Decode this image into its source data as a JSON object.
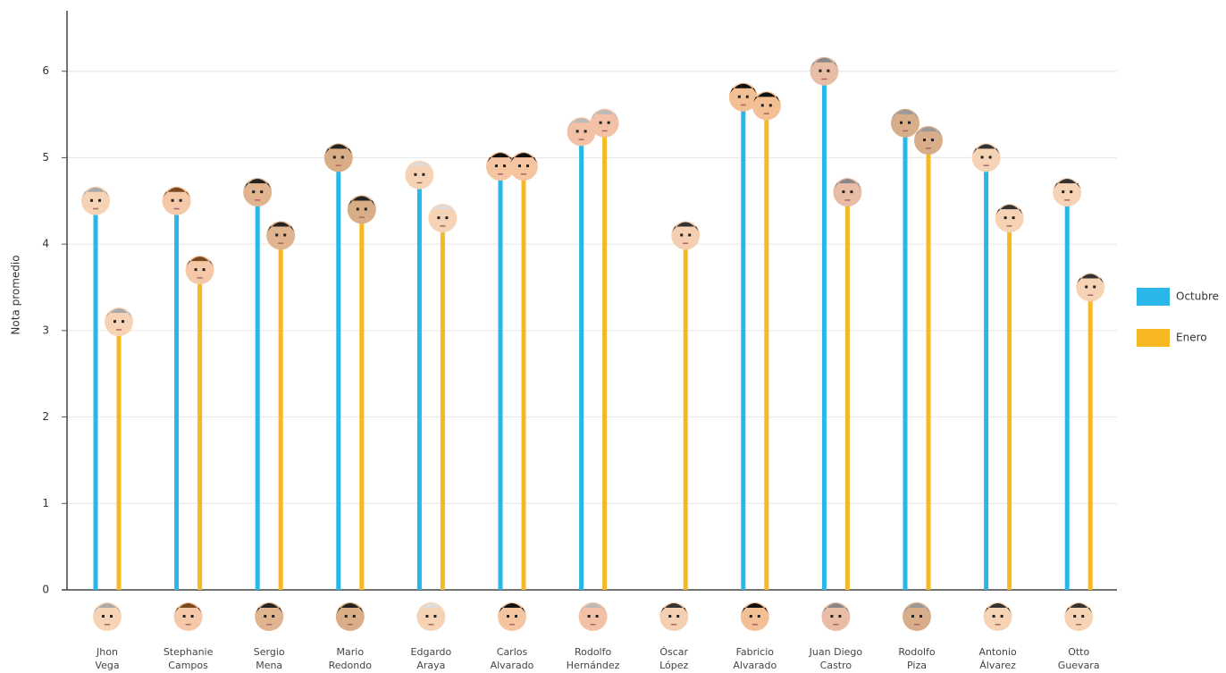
{
  "chart_data": {
    "type": "lollipop",
    "y_label": "Nota promedio",
    "categories": [
      [
        "Jhon",
        "Vega"
      ],
      [
        "Stephanie",
        "Campos"
      ],
      [
        "Sergio",
        "Mena"
      ],
      [
        "Mario",
        "Redondo"
      ],
      [
        "Edgardo",
        "Araya"
      ],
      [
        "Carlos",
        "Alvarado"
      ],
      [
        "Rodolfo",
        "Hernández"
      ],
      [
        "Óscar",
        "López"
      ],
      [
        "Fabricio",
        "Alvarado"
      ],
      [
        "Juan Diego",
        "Castro"
      ],
      [
        "Rodolfo",
        "Piza"
      ],
      [
        "Antonio",
        "Álvarez"
      ],
      [
        "Otto",
        "Guevara"
      ]
    ],
    "series": [
      {
        "name": "Octubre",
        "color": "#29b6e8",
        "values": [
          4.5,
          4.5,
          4.6,
          5.0,
          4.8,
          4.9,
          5.3,
          null,
          5.7,
          6.0,
          5.4,
          5.0,
          4.6
        ]
      },
      {
        "name": "Enero",
        "color": "#f7b824",
        "values": [
          3.1,
          3.7,
          4.1,
          4.4,
          4.3,
          4.9,
          5.4,
          4.1,
          5.6,
          4.6,
          5.2,
          4.3,
          3.5
        ]
      }
    ],
    "ylim": [
      0,
      6.7
    ],
    "yticks": [
      0,
      1,
      2,
      3,
      4,
      5,
      6
    ],
    "grid": true,
    "legend": "right"
  }
}
